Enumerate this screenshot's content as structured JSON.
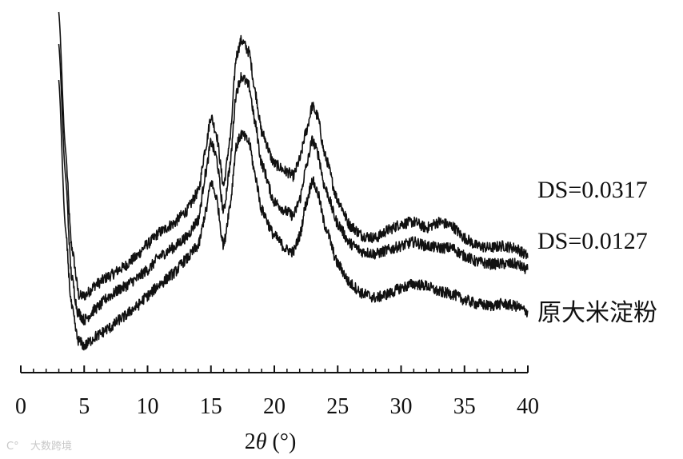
{
  "chart_data": {
    "type": "line",
    "title": "",
    "xlabel_prefix": "2",
    "xlabel_symbol": "θ",
    "xlabel_suffix": " (°)",
    "ylabel": "",
    "xlim": [
      0,
      40
    ],
    "x_ticks": [
      "0",
      "5",
      "10",
      "15",
      "20",
      "25",
      "30",
      "35",
      "40"
    ],
    "y_axis_visible": false,
    "grid": false,
    "line_color": "#111111",
    "series": [
      {
        "name": "DS=0.0317",
        "points": [
          [
            3,
            1.62
          ],
          [
            3.5,
            0.95
          ],
          [
            4,
            0.45
          ],
          [
            4.6,
            0.2
          ],
          [
            5,
            0.2
          ],
          [
            6,
            0.26
          ],
          [
            7,
            0.3
          ],
          [
            8,
            0.34
          ],
          [
            9,
            0.39
          ],
          [
            10,
            0.46
          ],
          [
            11,
            0.52
          ],
          [
            12,
            0.56
          ],
          [
            13,
            0.62
          ],
          [
            14,
            0.72
          ],
          [
            14.6,
            0.95
          ],
          [
            15,
            1.1
          ],
          [
            15.4,
            1.02
          ],
          [
            16,
            0.75
          ],
          [
            16.5,
            0.98
          ],
          [
            17,
            1.4
          ],
          [
            17.4,
            1.48
          ],
          [
            18,
            1.42
          ],
          [
            18.5,
            1.22
          ],
          [
            19,
            1.02
          ],
          [
            20,
            0.86
          ],
          [
            21,
            0.82
          ],
          [
            21.5,
            0.8
          ],
          [
            22,
            0.88
          ],
          [
            22.5,
            1.02
          ],
          [
            23,
            1.15
          ],
          [
            23.4,
            1.1
          ],
          [
            24,
            0.9
          ],
          [
            25,
            0.68
          ],
          [
            26,
            0.55
          ],
          [
            27,
            0.5
          ],
          [
            28,
            0.49
          ],
          [
            29,
            0.53
          ],
          [
            30,
            0.56
          ],
          [
            31,
            0.57
          ],
          [
            32,
            0.54
          ],
          [
            33,
            0.57
          ],
          [
            34,
            0.55
          ],
          [
            35,
            0.49
          ],
          [
            36,
            0.45
          ],
          [
            37,
            0.44
          ],
          [
            38,
            0.45
          ],
          [
            39,
            0.44
          ],
          [
            40,
            0.4
          ]
        ]
      },
      {
        "name": "DS=0.0127",
        "points": [
          [
            3,
            1.46
          ],
          [
            3.5,
            0.82
          ],
          [
            4,
            0.3
          ],
          [
            4.5,
            0.12
          ],
          [
            5,
            0.08
          ],
          [
            6,
            0.14
          ],
          [
            7,
            0.2
          ],
          [
            8,
            0.24
          ],
          [
            9,
            0.28
          ],
          [
            10,
            0.33
          ],
          [
            11,
            0.4
          ],
          [
            12,
            0.44
          ],
          [
            13,
            0.49
          ],
          [
            14,
            0.58
          ],
          [
            14.6,
            0.82
          ],
          [
            15,
            0.97
          ],
          [
            15.4,
            0.9
          ],
          [
            16,
            0.62
          ],
          [
            16.5,
            0.85
          ],
          [
            17,
            1.22
          ],
          [
            17.4,
            1.3
          ],
          [
            18,
            1.25
          ],
          [
            18.5,
            1.06
          ],
          [
            19,
            0.86
          ],
          [
            20,
            0.67
          ],
          [
            21,
            0.62
          ],
          [
            21.5,
            0.6
          ],
          [
            22,
            0.68
          ],
          [
            22.5,
            0.84
          ],
          [
            23,
            0.98
          ],
          [
            23.4,
            0.92
          ],
          [
            24,
            0.74
          ],
          [
            25,
            0.56
          ],
          [
            26,
            0.46
          ],
          [
            27,
            0.42
          ],
          [
            28,
            0.41
          ],
          [
            29,
            0.43
          ],
          [
            30,
            0.45
          ],
          [
            31,
            0.47
          ],
          [
            32,
            0.45
          ],
          [
            33,
            0.44
          ],
          [
            34,
            0.44
          ],
          [
            35,
            0.4
          ],
          [
            36,
            0.37
          ],
          [
            37,
            0.36
          ],
          [
            38,
            0.36
          ],
          [
            39,
            0.36
          ],
          [
            40,
            0.33
          ]
        ]
      },
      {
        "name": "原大米淀粉",
        "points": [
          [
            3,
            1.28
          ],
          [
            3.5,
            0.55
          ],
          [
            4,
            0.15
          ],
          [
            4.5,
            -0.02
          ],
          [
            5,
            -0.05
          ],
          [
            6,
            0.0
          ],
          [
            7,
            0.04
          ],
          [
            8,
            0.09
          ],
          [
            9,
            0.14
          ],
          [
            10,
            0.2
          ],
          [
            11,
            0.26
          ],
          [
            12,
            0.31
          ],
          [
            13,
            0.38
          ],
          [
            14,
            0.45
          ],
          [
            14.6,
            0.62
          ],
          [
            15,
            0.77
          ],
          [
            15.4,
            0.7
          ],
          [
            16,
            0.45
          ],
          [
            16.5,
            0.65
          ],
          [
            17,
            0.95
          ],
          [
            17.4,
            1.01
          ],
          [
            18,
            0.97
          ],
          [
            18.5,
            0.8
          ],
          [
            19,
            0.63
          ],
          [
            20,
            0.5
          ],
          [
            21,
            0.43
          ],
          [
            21.5,
            0.42
          ],
          [
            22,
            0.5
          ],
          [
            22.5,
            0.66
          ],
          [
            23,
            0.78
          ],
          [
            23.4,
            0.72
          ],
          [
            24,
            0.55
          ],
          [
            25,
            0.36
          ],
          [
            26,
            0.26
          ],
          [
            27,
            0.21
          ],
          [
            28,
            0.19
          ],
          [
            29,
            0.21
          ],
          [
            30,
            0.24
          ],
          [
            31,
            0.26
          ],
          [
            32,
            0.25
          ],
          [
            33,
            0.22
          ],
          [
            34,
            0.21
          ],
          [
            35,
            0.18
          ],
          [
            36,
            0.16
          ],
          [
            37,
            0.15
          ],
          [
            38,
            0.16
          ],
          [
            39,
            0.15
          ],
          [
            40,
            0.12
          ]
        ]
      }
    ]
  },
  "watermark": {
    "logo": "C°",
    "text": "大数跨境"
  }
}
